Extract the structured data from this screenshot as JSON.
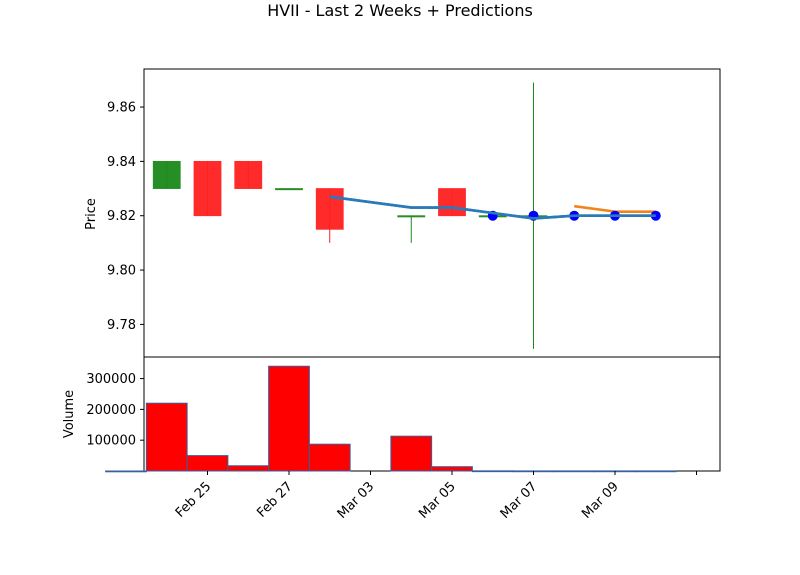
{
  "title": "HVII - Last 2 Weeks + Predictions",
  "colors": {
    "up": "#1a8a1a",
    "down": "#ff2020",
    "volume_bar": "#ff0000",
    "volume_edge": "#3a5f9f",
    "ma_line": "#2a7ab8",
    "prediction_line": "#f0841c",
    "prediction_marker": "#0000ff"
  },
  "chart_data": [
    {
      "type": "candlestick",
      "ylabel": "Price",
      "ylim": [
        9.768,
        9.874
      ],
      "yticks": [
        "9.78",
        "9.80",
        "9.82",
        "9.84",
        "9.86"
      ],
      "xlim_days_from_feb24": [
        -0.6,
        15.6
      ],
      "candles": [
        {
          "date": "Feb 24",
          "open": 9.83,
          "high": 9.84,
          "low": 9.83,
          "close": 9.84
        },
        {
          "date": "Feb 25",
          "open": 9.84,
          "high": 9.84,
          "low": 9.82,
          "close": 9.82
        },
        {
          "date": "Feb 26",
          "open": 9.84,
          "high": 9.84,
          "low": 9.83,
          "close": 9.83
        },
        {
          "date": "Feb 27",
          "open": 9.83,
          "high": 9.83,
          "low": 9.83,
          "close": 9.83
        },
        {
          "date": "Feb 28",
          "open": 9.83,
          "high": 9.83,
          "low": 9.81,
          "close": 9.815
        },
        {
          "date": "Mar 01",
          "open": 9.82,
          "high": 9.82,
          "low": 9.81,
          "close": 9.82
        },
        {
          "date": "Mar 02",
          "open": 9.83,
          "high": 9.83,
          "low": 9.82,
          "close": 9.82
        },
        {
          "date": "Mar 03",
          "open": 9.82,
          "high": 9.82,
          "low": 9.82,
          "close": 9.82
        },
        {
          "date": "Mar 04",
          "open": 9.82,
          "high": 9.869,
          "low": 9.771,
          "close": 9.82
        }
      ],
      "series": [
        {
          "type": "line",
          "dates": [
            "Feb 28",
            "Mar 01",
            "Mar 02",
            "Mar 03",
            "Mar 04",
            "Mar 05",
            "Mar 06",
            "Mar 07"
          ],
          "values": [
            9.827,
            9.823,
            9.823,
            9.821,
            9.819,
            9.82,
            9.82,
            9.82
          ]
        },
        {
          "type": "line",
          "dates": [
            "Mar 05",
            "Mar 06",
            "Mar 07"
          ],
          "values": [
            9.8235,
            9.8215,
            9.8215
          ]
        },
        {
          "type": "scatter",
          "dates": [
            "Mar 03",
            "Mar 04",
            "Mar 05",
            "Mar 06",
            "Mar 07"
          ],
          "values": [
            9.82,
            9.82,
            9.82,
            9.82,
            9.82
          ]
        }
      ]
    },
    {
      "type": "bar",
      "ylabel": "Volume",
      "ylim": [
        0,
        370000
      ],
      "yticks": [
        "100000",
        "200000",
        "300000"
      ],
      "dates": [
        "Feb 23",
        "Feb 24",
        "Feb 25",
        "Feb 26",
        "Feb 27",
        "Feb 28",
        "Mar 01",
        "Mar 02",
        "Mar 03",
        "Mar 04",
        "Mar 05",
        "Mar 06",
        "Mar 07"
      ],
      "values": [
        0,
        220000,
        50000,
        17000,
        340000,
        87000,
        113000,
        14000,
        500,
        300,
        300,
        300,
        300
      ]
    }
  ],
  "x_ticks": [
    {
      "label": "Feb 25",
      "day": 0
    },
    {
      "label": "Feb 27",
      "day": 2
    },
    {
      "label": "Mar 03",
      "day": 4
    },
    {
      "label": "Mar 05",
      "day": 6
    },
    {
      "label": "Mar 07",
      "day": 8
    },
    {
      "label": "Mar 09",
      "day": 10
    },
    {
      "label": "",
      "day": 12
    }
  ]
}
